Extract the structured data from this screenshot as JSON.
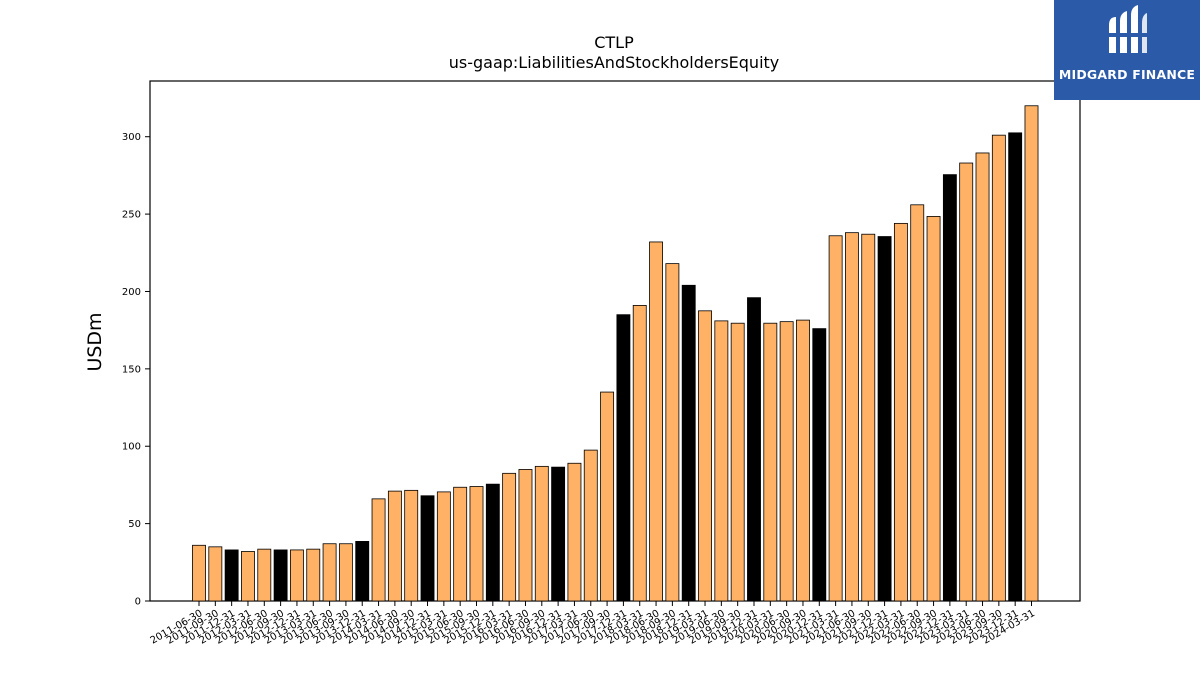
{
  "brand": {
    "name": "MIDGARD FINANCE",
    "color": "#2a5aa8"
  },
  "chart_data": {
    "type": "bar",
    "title": "CTLP",
    "subtitle": "us-gaap:LiabilitiesAndStockholdersEquity",
    "xlabel": "",
    "ylabel": "USDm",
    "ylim": [
      0,
      336
    ],
    "yticks": [
      0,
      50,
      100,
      150,
      200,
      250,
      300
    ],
    "grid": false,
    "colors": {
      "quarterly": "#ffb266",
      "annual": "#000000",
      "edge": "#000000"
    },
    "categories": [
      "2011-06-30",
      "2011-09-30",
      "2011-12-31",
      "2012-03-31",
      "2012-06-30",
      "2012-09-30",
      "2012-12-31",
      "2013-03-31",
      "2013-06-30",
      "2013-09-30",
      "2013-12-31",
      "2014-03-31",
      "2014-06-30",
      "2014-09-30",
      "2014-12-31",
      "2015-03-31",
      "2015-06-30",
      "2015-09-30",
      "2015-12-31",
      "2016-03-31",
      "2016-06-30",
      "2016-09-30",
      "2016-12-31",
      "2017-03-31",
      "2017-06-30",
      "2017-09-30",
      "2017-12-31",
      "2018-03-31",
      "2018-06-30",
      "2018-09-30",
      "2018-12-31",
      "2019-03-31",
      "2019-06-30",
      "2019-09-30",
      "2019-12-31",
      "2020-03-31",
      "2020-06-30",
      "2020-09-30",
      "2020-12-31",
      "2021-03-31",
      "2021-06-30",
      "2021-09-30",
      "2021-12-31",
      "2022-03-31",
      "2022-06-30",
      "2022-09-30",
      "2022-12-31",
      "2023-03-31",
      "2023-06-30",
      "2023-09-30",
      "2023-12-31",
      "2024-03-31"
    ],
    "values": [
      36,
      35,
      33,
      32,
      33.5,
      33,
      33,
      33.5,
      37,
      37,
      38.5,
      66,
      71,
      71.5,
      68,
      70.5,
      73.5,
      74,
      75.5,
      82.5,
      85,
      87,
      86.5,
      89,
      97.5,
      135,
      185,
      191,
      232,
      218,
      204,
      187.5,
      181,
      179.5,
      196,
      179.5,
      180.5,
      181.5,
      176,
      236,
      238,
      237,
      235.5,
      244,
      256,
      248.5,
      275.5,
      283,
      289.5,
      301,
      302.5,
      320
    ],
    "annual": [
      false,
      false,
      true,
      false,
      false,
      true,
      false,
      false,
      false,
      false,
      true,
      false,
      false,
      false,
      true,
      false,
      false,
      false,
      true,
      false,
      false,
      false,
      true,
      false,
      false,
      false,
      true,
      false,
      false,
      false,
      true,
      false,
      false,
      false,
      true,
      false,
      false,
      false,
      true,
      false,
      false,
      false,
      true,
      false,
      false,
      false,
      true,
      false,
      false,
      false,
      true,
      false
    ]
  }
}
